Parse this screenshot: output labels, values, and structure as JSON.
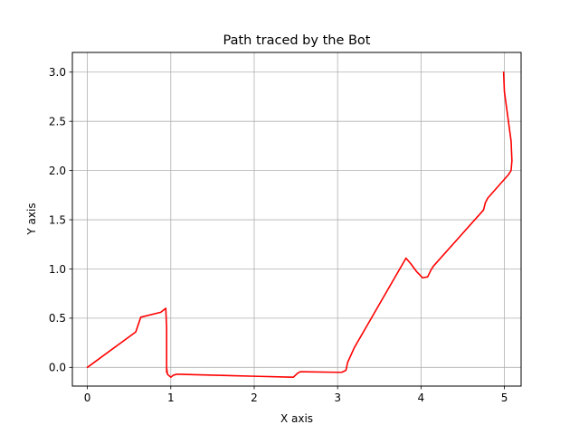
{
  "chart_data": {
    "type": "line",
    "title": "Path traced by the Bot",
    "xlabel": "X axis",
    "ylabel": "Y axis",
    "xlim": [
      -0.18,
      5.2
    ],
    "ylim": [
      -0.19,
      3.2
    ],
    "xticks": [
      0,
      1,
      2,
      3,
      4,
      5
    ],
    "xtick_labels": [
      "0",
      "1",
      "2",
      "3",
      "4",
      "5"
    ],
    "yticks": [
      0.0,
      0.5,
      1.0,
      1.5,
      2.0,
      2.5,
      3.0
    ],
    "ytick_labels": [
      "0.0",
      "0.5",
      "1.0",
      "1.5",
      "2.0",
      "2.5",
      "3.0"
    ],
    "grid": true,
    "series": [
      {
        "color": "#ff0000",
        "x": [
          0.0,
          0.58,
          0.64,
          0.88,
          0.94,
          0.95,
          0.95,
          0.95,
          0.96,
          1.0,
          1.03,
          1.07,
          1.1,
          1.3,
          2.0,
          2.47,
          2.52,
          2.55,
          2.6,
          3.0,
          3.05,
          3.1,
          3.12,
          3.2,
          3.82,
          3.88,
          3.95,
          4.02,
          4.08,
          4.12,
          4.15,
          4.75,
          4.77,
          4.8,
          5.05,
          5.08,
          5.09,
          5.08,
          5.04,
          5.0,
          4.99
        ],
        "y": [
          0.0,
          0.36,
          0.51,
          0.56,
          0.6,
          0.4,
          -0.05,
          0.0,
          -0.07,
          -0.1,
          -0.08,
          -0.07,
          -0.07,
          -0.075,
          -0.09,
          -0.1,
          -0.06,
          -0.045,
          -0.045,
          -0.05,
          -0.05,
          -0.03,
          0.05,
          0.2,
          1.11,
          1.05,
          0.97,
          0.91,
          0.92,
          0.99,
          1.03,
          1.6,
          1.67,
          1.72,
          1.96,
          2.0,
          2.1,
          2.3,
          2.55,
          2.8,
          3.0
        ]
      }
    ]
  }
}
